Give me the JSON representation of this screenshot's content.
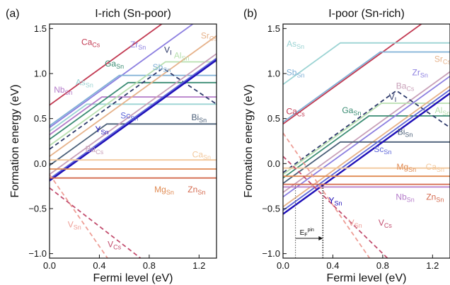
{
  "chart_data": [
    {
      "type": "line",
      "panel_tag": "(a)",
      "title": "I-rich (Sn-poor)",
      "xlabel": "Fermi level (eV)",
      "ylabel": "Formation energy (eV)",
      "xlim": [
        0,
        1.34
      ],
      "ylim": [
        -1.05,
        1.55
      ],
      "xticks": [
        0.0,
        0.4,
        0.8,
        1.2
      ],
      "yticks": [
        -1.0,
        -0.5,
        0.0,
        0.5,
        1.0,
        1.5
      ],
      "xtick_labels": [
        "0.0",
        "0.4",
        "0.8",
        "1.2"
      ],
      "ytick_labels": [
        "−1.0",
        "−0.5",
        "0.0",
        "0.5",
        "1.0",
        "1.5"
      ],
      "grid": false,
      "series": [
        {
          "name": "Ca_Cs",
          "color": "#c23a52",
          "dash": false,
          "points": [
            [
              0,
              0.65
            ],
            [
              1.34,
              1.99
            ]
          ]
        },
        {
          "name": "Zr_Sn",
          "color": "#8c7fe0",
          "dash": false,
          "points": [
            [
              0,
              0.4
            ],
            [
              1.34,
              1.74
            ]
          ]
        },
        {
          "name": "As_Sn",
          "color": "#9bd3d3",
          "dash": false,
          "points": [
            [
              0,
              0.36
            ],
            [
              0.3,
              0.66
            ],
            [
              1.34,
              0.66
            ]
          ]
        },
        {
          "name": "Nb_Sn",
          "color": "#b47bc9",
          "dash": false,
          "points": [
            [
              0,
              0.32
            ],
            [
              0.42,
              0.74
            ],
            [
              1.34,
              0.74
            ]
          ]
        },
        {
          "name": "Ga_Sn",
          "color": "#3a8c73",
          "dash": false,
          "points": [
            [
              0,
              0.27
            ],
            [
              0.63,
              0.9
            ],
            [
              1.34,
              0.9
            ]
          ]
        },
        {
          "name": "Sb_Sn",
          "color": "#7fb0d6",
          "dash": false,
          "points": [
            [
              0,
              0.42
            ],
            [
              0.56,
              0.98
            ],
            [
              1.34,
              0.98
            ]
          ]
        },
        {
          "name": "Al_Sn",
          "color": "#b9e0b0",
          "dash": false,
          "points": [
            [
              0,
              0.2
            ],
            [
              0.93,
              1.13
            ],
            [
              1.34,
              1.13
            ]
          ]
        },
        {
          "name": "Sr_Cs",
          "color": "#e6b28a",
          "dash": false,
          "points": [
            [
              0,
              0.08
            ],
            [
              1.34,
              1.42
            ]
          ]
        },
        {
          "name": "V_I",
          "color": "#2e3a6b",
          "dash": true,
          "points": [
            [
              0,
              0.16
            ],
            [
              0.91,
              1.06
            ],
            [
              1.34,
              0.66
            ]
          ]
        },
        {
          "name": "Bi_Sn",
          "color": "#4a5f78",
          "dash": false,
          "points": [
            [
              0,
              -0.02
            ],
            [
              0.46,
              0.44
            ],
            [
              1.34,
              0.44
            ]
          ]
        },
        {
          "name": "Ba_Cs",
          "color": "#c8a0b8",
          "dash": false,
          "points": [
            [
              0,
              -0.12
            ],
            [
              1.34,
              1.22
            ]
          ]
        },
        {
          "name": "Sc_Sn",
          "color": "#5b64d8",
          "dash": false,
          "points": [
            [
              0,
              -0.17
            ],
            [
              1.34,
              1.17
            ]
          ]
        },
        {
          "name": "Y_Sn",
          "color": "#1f10b8",
          "dash": false,
          "points": [
            [
              0,
              -0.19
            ],
            [
              1.34,
              1.15
            ]
          ]
        },
        {
          "name": "Ca_Sn",
          "color": "#f2c89c",
          "dash": false,
          "points": [
            [
              0,
              0.04
            ],
            [
              1.34,
              0.04
            ]
          ]
        },
        {
          "name": "Mg_Sn",
          "color": "#e08a52",
          "dash": false,
          "points": [
            [
              0,
              -0.06
            ],
            [
              1.34,
              -0.06
            ]
          ]
        },
        {
          "name": "Zn_Sn",
          "color": "#d46a4e",
          "dash": false,
          "points": [
            [
              0,
              -0.16
            ],
            [
              1.34,
              -0.16
            ]
          ]
        },
        {
          "name": "V_Sn",
          "color": "#ee9e96",
          "dash": true,
          "points": [
            [
              0,
              -0.12
            ],
            [
              0.55,
              -1.22
            ]
          ]
        },
        {
          "name": "V_Cs",
          "color": "#c24d6e",
          "dash": true,
          "points": [
            [
              0,
              -0.27
            ],
            [
              0.73,
              -1.05
            ]
          ]
        }
      ],
      "labels": [
        {
          "base": "Ca",
          "sub": "Cs",
          "x": 0.33,
          "y": 1.32,
          "color": "#c23a52"
        },
        {
          "base": "Zr",
          "sub": "Sn",
          "x": 0.71,
          "y": 1.29,
          "color": "#8c7fe0"
        },
        {
          "base": "V",
          "sub": "I",
          "x": 0.95,
          "y": 1.23,
          "color": "#2e3a6b"
        },
        {
          "base": "Sr",
          "sub": "Cs",
          "x": 1.28,
          "y": 1.39,
          "color": "#e6b28a"
        },
        {
          "base": "Ga",
          "sub": "Sn",
          "x": 0.52,
          "y": 1.08,
          "color": "#3a8c73"
        },
        {
          "base": "Sb",
          "sub": "Sn",
          "x": 0.9,
          "y": 1.04,
          "color": "#7fb0d6"
        },
        {
          "base": "Al",
          "sub": "Sn",
          "x": 1.06,
          "y": 1.17,
          "color": "#b9e0b0"
        },
        {
          "base": "Nb",
          "sub": "Sn",
          "x": 0.11,
          "y": 0.79,
          "color": "#b47bc9"
        },
        {
          "base": "As",
          "sub": "Sn",
          "x": 0.28,
          "y": 0.87,
          "color": "#9bd3d3"
        },
        {
          "base": "Bi",
          "sub": "Sn",
          "x": 1.2,
          "y": 0.48,
          "color": "#4a5f78"
        },
        {
          "base": "Sc",
          "sub": "Sn",
          "x": 0.64,
          "y": 0.5,
          "color": "#5b64d8"
        },
        {
          "base": "Y",
          "sub": "Sn",
          "x": 0.42,
          "y": 0.35,
          "color": "#1f10b8"
        },
        {
          "base": "Ba",
          "sub": "Cs",
          "x": 0.36,
          "y": 0.13,
          "color": "#c8a0b8"
        },
        {
          "base": "Ca",
          "sub": "Sn",
          "x": 1.22,
          "y": 0.07,
          "color": "#f2c89c"
        },
        {
          "base": "Mg",
          "sub": "Sn",
          "x": 0.92,
          "y": -0.32,
          "color": "#e08a52"
        },
        {
          "base": "Zn",
          "sub": "Sn",
          "x": 1.18,
          "y": -0.32,
          "color": "#d46a4e"
        },
        {
          "base": "V",
          "sub": "Sn",
          "x": 0.2,
          "y": -0.71,
          "color": "#ee9e96"
        },
        {
          "base": "V",
          "sub": "Cs",
          "x": 0.52,
          "y": -0.93,
          "color": "#c24d6e"
        }
      ]
    },
    {
      "type": "line",
      "panel_tag": "(b)",
      "title": "I-poor (Sn-rich)",
      "xlabel": "Fermi level (eV)",
      "ylabel": "Formation energy (eV)",
      "xlim": [
        0,
        1.34
      ],
      "ylim": [
        -1.05,
        1.55
      ],
      "xticks": [
        0.0,
        0.4,
        0.8,
        1.2
      ],
      "yticks": [
        -1.0,
        -0.5,
        0.0,
        0.5,
        1.0,
        1.5
      ],
      "xtick_labels": [
        "0.0",
        "0.4",
        "0.8",
        "1.2"
      ],
      "ytick_labels": [
        "−1.0",
        "−0.5",
        "0.0",
        "0.5",
        "1.0",
        "1.5"
      ],
      "grid": false,
      "series": [
        {
          "name": "Ca_Cs",
          "color": "#c23a52",
          "dash": false,
          "points": [
            [
              0,
              0.44
            ],
            [
              1.34,
              1.78
            ]
          ]
        },
        {
          "name": "As_Sn",
          "color": "#9bd3d3",
          "dash": false,
          "points": [
            [
              0,
              0.88
            ],
            [
              0.46,
              1.34
            ],
            [
              1.34,
              1.34
            ]
          ]
        },
        {
          "name": "Sb_Sn",
          "color": "#7fb0d6",
          "dash": false,
          "points": [
            [
              0,
              0.46
            ],
            [
              0.78,
              1.24
            ],
            [
              1.34,
              1.24
            ]
          ]
        },
        {
          "name": "Ba_Cs",
          "color": "#c8a0b8",
          "dash": false,
          "points": [
            [
              0,
              -0.32
            ],
            [
              1.34,
              1.02
            ]
          ]
        },
        {
          "name": "Ga_Sn",
          "color": "#3a8c73",
          "dash": false,
          "points": [
            [
              0,
              -0.16
            ],
            [
              0.69,
              0.53
            ],
            [
              1.34,
              0.53
            ]
          ]
        },
        {
          "name": "Al_Sn",
          "color": "#b9e0b0",
          "dash": false,
          "points": [
            [
              0,
              -0.12
            ],
            [
              0.79,
              0.67
            ],
            [
              1.34,
              0.67
            ]
          ]
        },
        {
          "name": "Zr_Sn",
          "color": "#8c7fe0",
          "dash": false,
          "points": [
            [
              0,
              -0.37
            ],
            [
              1.34,
              0.97
            ]
          ]
        },
        {
          "name": "Sr_Cs",
          "color": "#e6b28a",
          "dash": false,
          "points": [
            [
              0,
              -0.48
            ],
            [
              1.34,
              0.86
            ]
          ]
        },
        {
          "name": "V_I",
          "color": "#2e3a6b",
          "dash": true,
          "points": [
            [
              0,
              -0.1
            ],
            [
              0.91,
              0.81
            ],
            [
              1.34,
              0.4
            ]
          ]
        },
        {
          "name": "Bi_Sn",
          "color": "#4a5f78",
          "dash": false,
          "points": [
            [
              0,
              -0.22
            ],
            [
              0.46,
              0.24
            ],
            [
              1.34,
              0.24
            ]
          ]
        },
        {
          "name": "Sc_Sn",
          "color": "#5b64d8",
          "dash": false,
          "points": [
            [
              0,
              -0.52
            ],
            [
              1.34,
              0.82
            ]
          ]
        },
        {
          "name": "Y_Sn",
          "color": "#1f10b8",
          "dash": false,
          "points": [
            [
              0,
              -0.56
            ],
            [
              1.34,
              0.78
            ]
          ]
        },
        {
          "name": "Ca_Sn",
          "color": "#f2c89c",
          "dash": false,
          "points": [
            [
              0,
              -0.05
            ],
            [
              1.34,
              -0.05
            ]
          ]
        },
        {
          "name": "Mg_Sn",
          "color": "#e08a52",
          "dash": false,
          "points": [
            [
              0,
              -0.14
            ],
            [
              1.34,
              -0.14
            ]
          ]
        },
        {
          "name": "Zn_Sn",
          "color": "#d46a4e",
          "dash": false,
          "points": [
            [
              0,
              -0.23
            ],
            [
              1.34,
              -0.23
            ]
          ]
        },
        {
          "name": "Nb_Sn",
          "color": "#b47bc9",
          "dash": false,
          "points": [
            [
              0,
              -0.26
            ],
            [
              1.34,
              -0.26
            ]
          ]
        },
        {
          "name": "V_Sn",
          "color": "#ee9e96",
          "dash": true,
          "points": [
            [
              0,
              0.34
            ],
            [
              0.74,
              -1.14
            ]
          ]
        },
        {
          "name": "V_Cs",
          "color": "#c24d6e",
          "dash": true,
          "points": [
            [
              0,
              0.08
            ],
            [
              0.86,
              -1.08
            ]
          ]
        }
      ],
      "labels": [
        {
          "base": "As",
          "sub": "Sn",
          "x": 0.1,
          "y": 1.3,
          "color": "#9bd3d3"
        },
        {
          "base": "Sr",
          "sub": "Cs",
          "x": 1.28,
          "y": 1.13,
          "color": "#e6b28a"
        },
        {
          "base": "Sb",
          "sub": "Sn",
          "x": 0.1,
          "y": 0.98,
          "color": "#7fb0d6"
        },
        {
          "base": "Zr",
          "sub": "Sn",
          "x": 1.1,
          "y": 0.98,
          "color": "#8c7fe0"
        },
        {
          "base": "Ba",
          "sub": "Cs",
          "x": 0.98,
          "y": 0.83,
          "color": "#c8a0b8"
        },
        {
          "base": "V",
          "sub": "I",
          "x": 0.88,
          "y": 0.71,
          "color": "#2e3a6b"
        },
        {
          "base": "Ga",
          "sub": "Sn",
          "x": 0.55,
          "y": 0.56,
          "color": "#3a8c73"
        },
        {
          "base": "Al",
          "sub": "Sn",
          "x": 1.28,
          "y": 0.56,
          "color": "#b9e0b0"
        },
        {
          "base": "Ca",
          "sub": "Cs",
          "x": 0.1,
          "y": 0.55,
          "color": "#c23a52"
        },
        {
          "base": "Bi",
          "sub": "Sn",
          "x": 0.98,
          "y": 0.32,
          "color": "#4a5f78"
        },
        {
          "base": "Sc",
          "sub": "Sn",
          "x": 0.8,
          "y": 0.13,
          "color": "#5b64d8"
        },
        {
          "base": "Mg",
          "sub": "Sn",
          "x": 0.99,
          "y": -0.07,
          "color": "#e08a52"
        },
        {
          "base": "Ca",
          "sub": "Sn",
          "x": 1.22,
          "y": -0.07,
          "color": "#f2c89c"
        },
        {
          "base": "Nb",
          "sub": "Sn",
          "x": 0.98,
          "y": -0.4,
          "color": "#b47bc9"
        },
        {
          "base": "Zn",
          "sub": "Sn",
          "x": 1.22,
          "y": -0.4,
          "color": "#d46a4e"
        },
        {
          "base": "Y",
          "sub": "Sn",
          "x": 0.42,
          "y": -0.44,
          "color": "#1f10b8"
        },
        {
          "base": "V",
          "sub": "Sn",
          "x": 0.58,
          "y": -0.69,
          "color": "#ee9e96"
        },
        {
          "base": "V",
          "sub": "Cs",
          "x": 0.82,
          "y": -0.69,
          "color": "#c24d6e"
        }
      ],
      "pinning": {
        "label_base": "E",
        "label_sub": "F",
        "label_sup": "pin",
        "x_start": 0.1,
        "x_end": 0.32,
        "y_arrow": -0.83
      }
    }
  ]
}
